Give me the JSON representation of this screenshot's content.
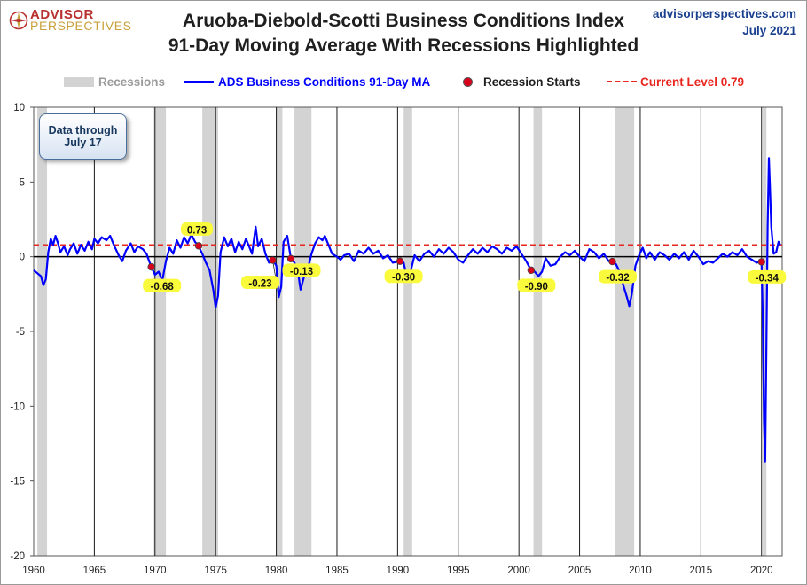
{
  "header": {
    "logo_line1": "ADVISOR",
    "logo_line2": "PERSPECTIVES",
    "title_line1": "Aruoba-Diebold-Scotti Business Conditions Index",
    "title_line2": "91-Day Moving Average With Recessions Highlighted",
    "source_site": "advisorperspectives.com",
    "source_date": "July 2021"
  },
  "legend": {
    "recessions": "Recessions",
    "series": "ADS Business Conditions 91-Day MA",
    "starts": "Recession Starts",
    "current": "Current Level 0.79"
  },
  "annotation": {
    "line1": "Data through",
    "line2": "July 17"
  },
  "colors": {
    "series": "#0000ff",
    "recession": "#d3d3d3",
    "marker": "#d9001b",
    "current": "#e8261f",
    "label_bg": "#fafa3c"
  },
  "chart_data": {
    "type": "line",
    "xlim": [
      1960,
      2021.7
    ],
    "ylim": [
      -20,
      10
    ],
    "x_ticks": [
      1960,
      1965,
      1970,
      1975,
      1980,
      1985,
      1990,
      1995,
      2000,
      2005,
      2010,
      2015,
      2020
    ],
    "y_ticks": [
      10,
      5,
      0,
      -5,
      -10,
      -15,
      -20
    ],
    "current_level": 0.79,
    "recessions": [
      [
        1960.3,
        1961.1
      ],
      [
        1969.9,
        1970.9
      ],
      [
        1973.9,
        1975.2
      ],
      [
        1980.0,
        1980.5
      ],
      [
        1981.5,
        1982.9
      ],
      [
        1990.5,
        1991.2
      ],
      [
        2001.2,
        2001.9
      ],
      [
        2007.9,
        2009.5
      ],
      [
        2020.1,
        2020.4
      ]
    ],
    "recession_starts": [
      {
        "x": 1969.7,
        "y": -0.68,
        "label": "-0.68"
      },
      {
        "x": 1973.6,
        "y": 0.73,
        "label": "0.73"
      },
      {
        "x": 1979.7,
        "y": -0.23,
        "label": "-0.23"
      },
      {
        "x": 1981.2,
        "y": -0.13,
        "label": "-0.13"
      },
      {
        "x": 1990.2,
        "y": -0.3,
        "label": "-0.30"
      },
      {
        "x": 2001.0,
        "y": -0.9,
        "label": "-0.90"
      },
      {
        "x": 2007.7,
        "y": -0.32,
        "label": "-0.32"
      },
      {
        "x": 2020.0,
        "y": -0.34,
        "label": "-0.34"
      }
    ],
    "series": [
      {
        "name": "ADS Business Conditions 91-Day MA",
        "points": [
          [
            1960.0,
            -0.9
          ],
          [
            1960.3,
            -1.1
          ],
          [
            1960.6,
            -1.3
          ],
          [
            1960.8,
            -1.9
          ],
          [
            1961.0,
            -1.5
          ],
          [
            1961.2,
            0.3
          ],
          [
            1961.4,
            1.2
          ],
          [
            1961.6,
            0.8
          ],
          [
            1961.8,
            1.4
          ],
          [
            1962.0,
            0.9
          ],
          [
            1962.2,
            0.3
          ],
          [
            1962.5,
            0.7
          ],
          [
            1962.8,
            0.1
          ],
          [
            1963.0,
            0.5
          ],
          [
            1963.3,
            0.9
          ],
          [
            1963.6,
            0.2
          ],
          [
            1963.9,
            0.8
          ],
          [
            1964.2,
            0.4
          ],
          [
            1964.5,
            1.0
          ],
          [
            1964.8,
            0.5
          ],
          [
            1965.0,
            1.2
          ],
          [
            1965.3,
            0.9
          ],
          [
            1965.6,
            1.3
          ],
          [
            1966.0,
            1.1
          ],
          [
            1966.3,
            1.4
          ],
          [
            1966.6,
            0.8
          ],
          [
            1967.0,
            0.1
          ],
          [
            1967.3,
            -0.3
          ],
          [
            1967.6,
            0.4
          ],
          [
            1968.0,
            0.9
          ],
          [
            1968.3,
            0.3
          ],
          [
            1968.6,
            0.7
          ],
          [
            1969.0,
            0.5
          ],
          [
            1969.3,
            0.2
          ],
          [
            1969.7,
            -0.7
          ],
          [
            1970.0,
            -1.2
          ],
          [
            1970.3,
            -1.0
          ],
          [
            1970.6,
            -1.6
          ],
          [
            1970.9,
            -0.3
          ],
          [
            1971.2,
            0.6
          ],
          [
            1971.5,
            0.2
          ],
          [
            1971.8,
            1.1
          ],
          [
            1972.1,
            0.6
          ],
          [
            1972.4,
            1.3
          ],
          [
            1972.7,
            0.9
          ],
          [
            1973.0,
            1.5
          ],
          [
            1973.3,
            1.0
          ],
          [
            1973.6,
            0.7
          ],
          [
            1973.9,
            0.2
          ],
          [
            1974.2,
            -0.4
          ],
          [
            1974.5,
            -0.9
          ],
          [
            1974.8,
            -2.2
          ],
          [
            1975.0,
            -3.4
          ],
          [
            1975.2,
            -2.6
          ],
          [
            1975.4,
            0.3
          ],
          [
            1975.7,
            1.3
          ],
          [
            1976.0,
            0.7
          ],
          [
            1976.3,
            1.2
          ],
          [
            1976.6,
            0.3
          ],
          [
            1976.9,
            1.0
          ],
          [
            1977.2,
            0.5
          ],
          [
            1977.5,
            1.2
          ],
          [
            1977.8,
            0.6
          ],
          [
            1978.0,
            0.2
          ],
          [
            1978.3,
            2.0
          ],
          [
            1978.5,
            0.7
          ],
          [
            1978.8,
            1.2
          ],
          [
            1979.1,
            0.2
          ],
          [
            1979.4,
            -0.4
          ],
          [
            1979.7,
            -0.2
          ],
          [
            1980.0,
            -0.6
          ],
          [
            1980.2,
            -2.7
          ],
          [
            1980.4,
            -2.0
          ],
          [
            1980.6,
            1.0
          ],
          [
            1980.9,
            1.4
          ],
          [
            1981.2,
            -0.1
          ],
          [
            1981.5,
            -0.4
          ],
          [
            1981.8,
            -1.1
          ],
          [
            1982.0,
            -2.2
          ],
          [
            1982.3,
            -1.3
          ],
          [
            1982.6,
            -0.8
          ],
          [
            1982.9,
            0.2
          ],
          [
            1983.2,
            0.9
          ],
          [
            1983.5,
            1.3
          ],
          [
            1983.8,
            1.1
          ],
          [
            1984.0,
            1.4
          ],
          [
            1984.3,
            0.8
          ],
          [
            1984.6,
            0.2
          ],
          [
            1985.0,
            0.0
          ],
          [
            1985.3,
            -0.2
          ],
          [
            1985.6,
            0.1
          ],
          [
            1986.0,
            0.2
          ],
          [
            1986.4,
            -0.3
          ],
          [
            1986.8,
            0.4
          ],
          [
            1987.2,
            0.2
          ],
          [
            1987.6,
            0.6
          ],
          [
            1988.0,
            0.2
          ],
          [
            1988.4,
            0.4
          ],
          [
            1988.8,
            -0.1
          ],
          [
            1989.2,
            0.1
          ],
          [
            1989.6,
            -0.4
          ],
          [
            1990.2,
            -0.3
          ],
          [
            1990.5,
            -0.4
          ],
          [
            1990.8,
            -1.5
          ],
          [
            1991.1,
            -0.9
          ],
          [
            1991.4,
            0.1
          ],
          [
            1991.8,
            -0.3
          ],
          [
            1992.2,
            0.2
          ],
          [
            1992.6,
            0.4
          ],
          [
            1993.0,
            0.0
          ],
          [
            1993.4,
            0.5
          ],
          [
            1993.8,
            0.2
          ],
          [
            1994.2,
            0.6
          ],
          [
            1994.6,
            0.3
          ],
          [
            1995.0,
            -0.2
          ],
          [
            1995.4,
            -0.4
          ],
          [
            1995.8,
            0.1
          ],
          [
            1996.2,
            0.5
          ],
          [
            1996.6,
            0.2
          ],
          [
            1997.0,
            0.6
          ],
          [
            1997.4,
            0.3
          ],
          [
            1997.8,
            0.7
          ],
          [
            1998.2,
            0.5
          ],
          [
            1998.6,
            0.2
          ],
          [
            1999.0,
            0.6
          ],
          [
            1999.4,
            0.4
          ],
          [
            1999.8,
            0.7
          ],
          [
            2000.2,
            0.2
          ],
          [
            2000.6,
            -0.3
          ],
          [
            2001.0,
            -0.9
          ],
          [
            2001.3,
            -1.0
          ],
          [
            2001.6,
            -1.3
          ],
          [
            2001.9,
            -1.0
          ],
          [
            2002.2,
            -0.1
          ],
          [
            2002.6,
            -0.6
          ],
          [
            2003.0,
            -0.5
          ],
          [
            2003.4,
            0.0
          ],
          [
            2003.8,
            0.3
          ],
          [
            2004.2,
            0.1
          ],
          [
            2004.6,
            0.4
          ],
          [
            2005.0,
            0.0
          ],
          [
            2005.4,
            -0.3
          ],
          [
            2005.8,
            0.5
          ],
          [
            2006.2,
            0.3
          ],
          [
            2006.6,
            -0.1
          ],
          [
            2007.0,
            0.2
          ],
          [
            2007.4,
            -0.3
          ],
          [
            2007.7,
            -0.3
          ],
          [
            2008.0,
            -0.5
          ],
          [
            2008.3,
            -1.0
          ],
          [
            2008.6,
            -1.9
          ],
          [
            2008.9,
            -2.7
          ],
          [
            2009.1,
            -3.3
          ],
          [
            2009.3,
            -2.5
          ],
          [
            2009.6,
            -0.6
          ],
          [
            2009.9,
            0.1
          ],
          [
            2010.2,
            0.6
          ],
          [
            2010.5,
            -0.1
          ],
          [
            2010.8,
            0.3
          ],
          [
            2011.2,
            -0.2
          ],
          [
            2011.6,
            0.3
          ],
          [
            2012.0,
            0.1
          ],
          [
            2012.4,
            -0.2
          ],
          [
            2012.8,
            0.2
          ],
          [
            2013.2,
            -0.1
          ],
          [
            2013.6,
            0.3
          ],
          [
            2014.0,
            -0.2
          ],
          [
            2014.4,
            0.4
          ],
          [
            2014.8,
            0.0
          ],
          [
            2015.2,
            -0.5
          ],
          [
            2015.6,
            -0.3
          ],
          [
            2016.0,
            -0.4
          ],
          [
            2016.4,
            -0.1
          ],
          [
            2016.8,
            0.2
          ],
          [
            2017.2,
            0.0
          ],
          [
            2017.6,
            0.3
          ],
          [
            2018.0,
            0.1
          ],
          [
            2018.4,
            0.5
          ],
          [
            2018.8,
            0.0
          ],
          [
            2019.2,
            -0.2
          ],
          [
            2019.6,
            -0.4
          ],
          [
            2020.0,
            -0.3
          ],
          [
            2020.1,
            -4.0
          ],
          [
            2020.2,
            -11.0
          ],
          [
            2020.3,
            -13.7
          ],
          [
            2020.4,
            -6.0
          ],
          [
            2020.5,
            2.0
          ],
          [
            2020.6,
            6.6
          ],
          [
            2020.7,
            4.5
          ],
          [
            2020.8,
            2.0
          ],
          [
            2021.0,
            0.2
          ],
          [
            2021.2,
            0.3
          ],
          [
            2021.4,
            1.0
          ],
          [
            2021.55,
            0.79
          ]
        ]
      }
    ]
  }
}
